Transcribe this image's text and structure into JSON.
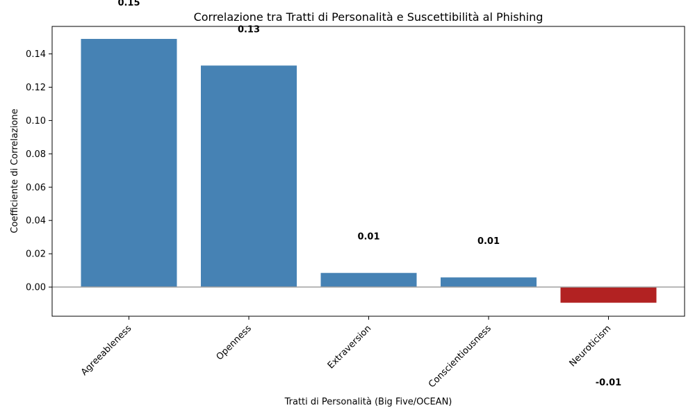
{
  "chart_data": {
    "type": "bar",
    "title": "Correlazione tra Tratti di Personalità e Suscettibilità al Phishing",
    "xlabel": "Tratti di Personalità (Big Five/OCEAN)",
    "ylabel": "Coefficiente di Correlazione",
    "categories": [
      "Agreeableness",
      "Openness",
      "Extraversion",
      "Conscientiousness",
      "Neuroticism"
    ],
    "values": [
      0.149,
      0.133,
      0.0085,
      0.0058,
      -0.0094
    ],
    "data_labels": [
      "0.15",
      "0.13",
      "0.01",
      "0.01",
      "-0.01"
    ],
    "yticks": [
      "0.00",
      "0.02",
      "0.04",
      "0.06",
      "0.08",
      "0.10",
      "0.12",
      "0.14"
    ],
    "ylim": [
      -0.0175,
      0.1565
    ],
    "grid": false,
    "zero_line": true,
    "colors": {
      "positive": "#4682b4",
      "negative": "#b22222",
      "zero_line": "#a0a0a0"
    }
  }
}
